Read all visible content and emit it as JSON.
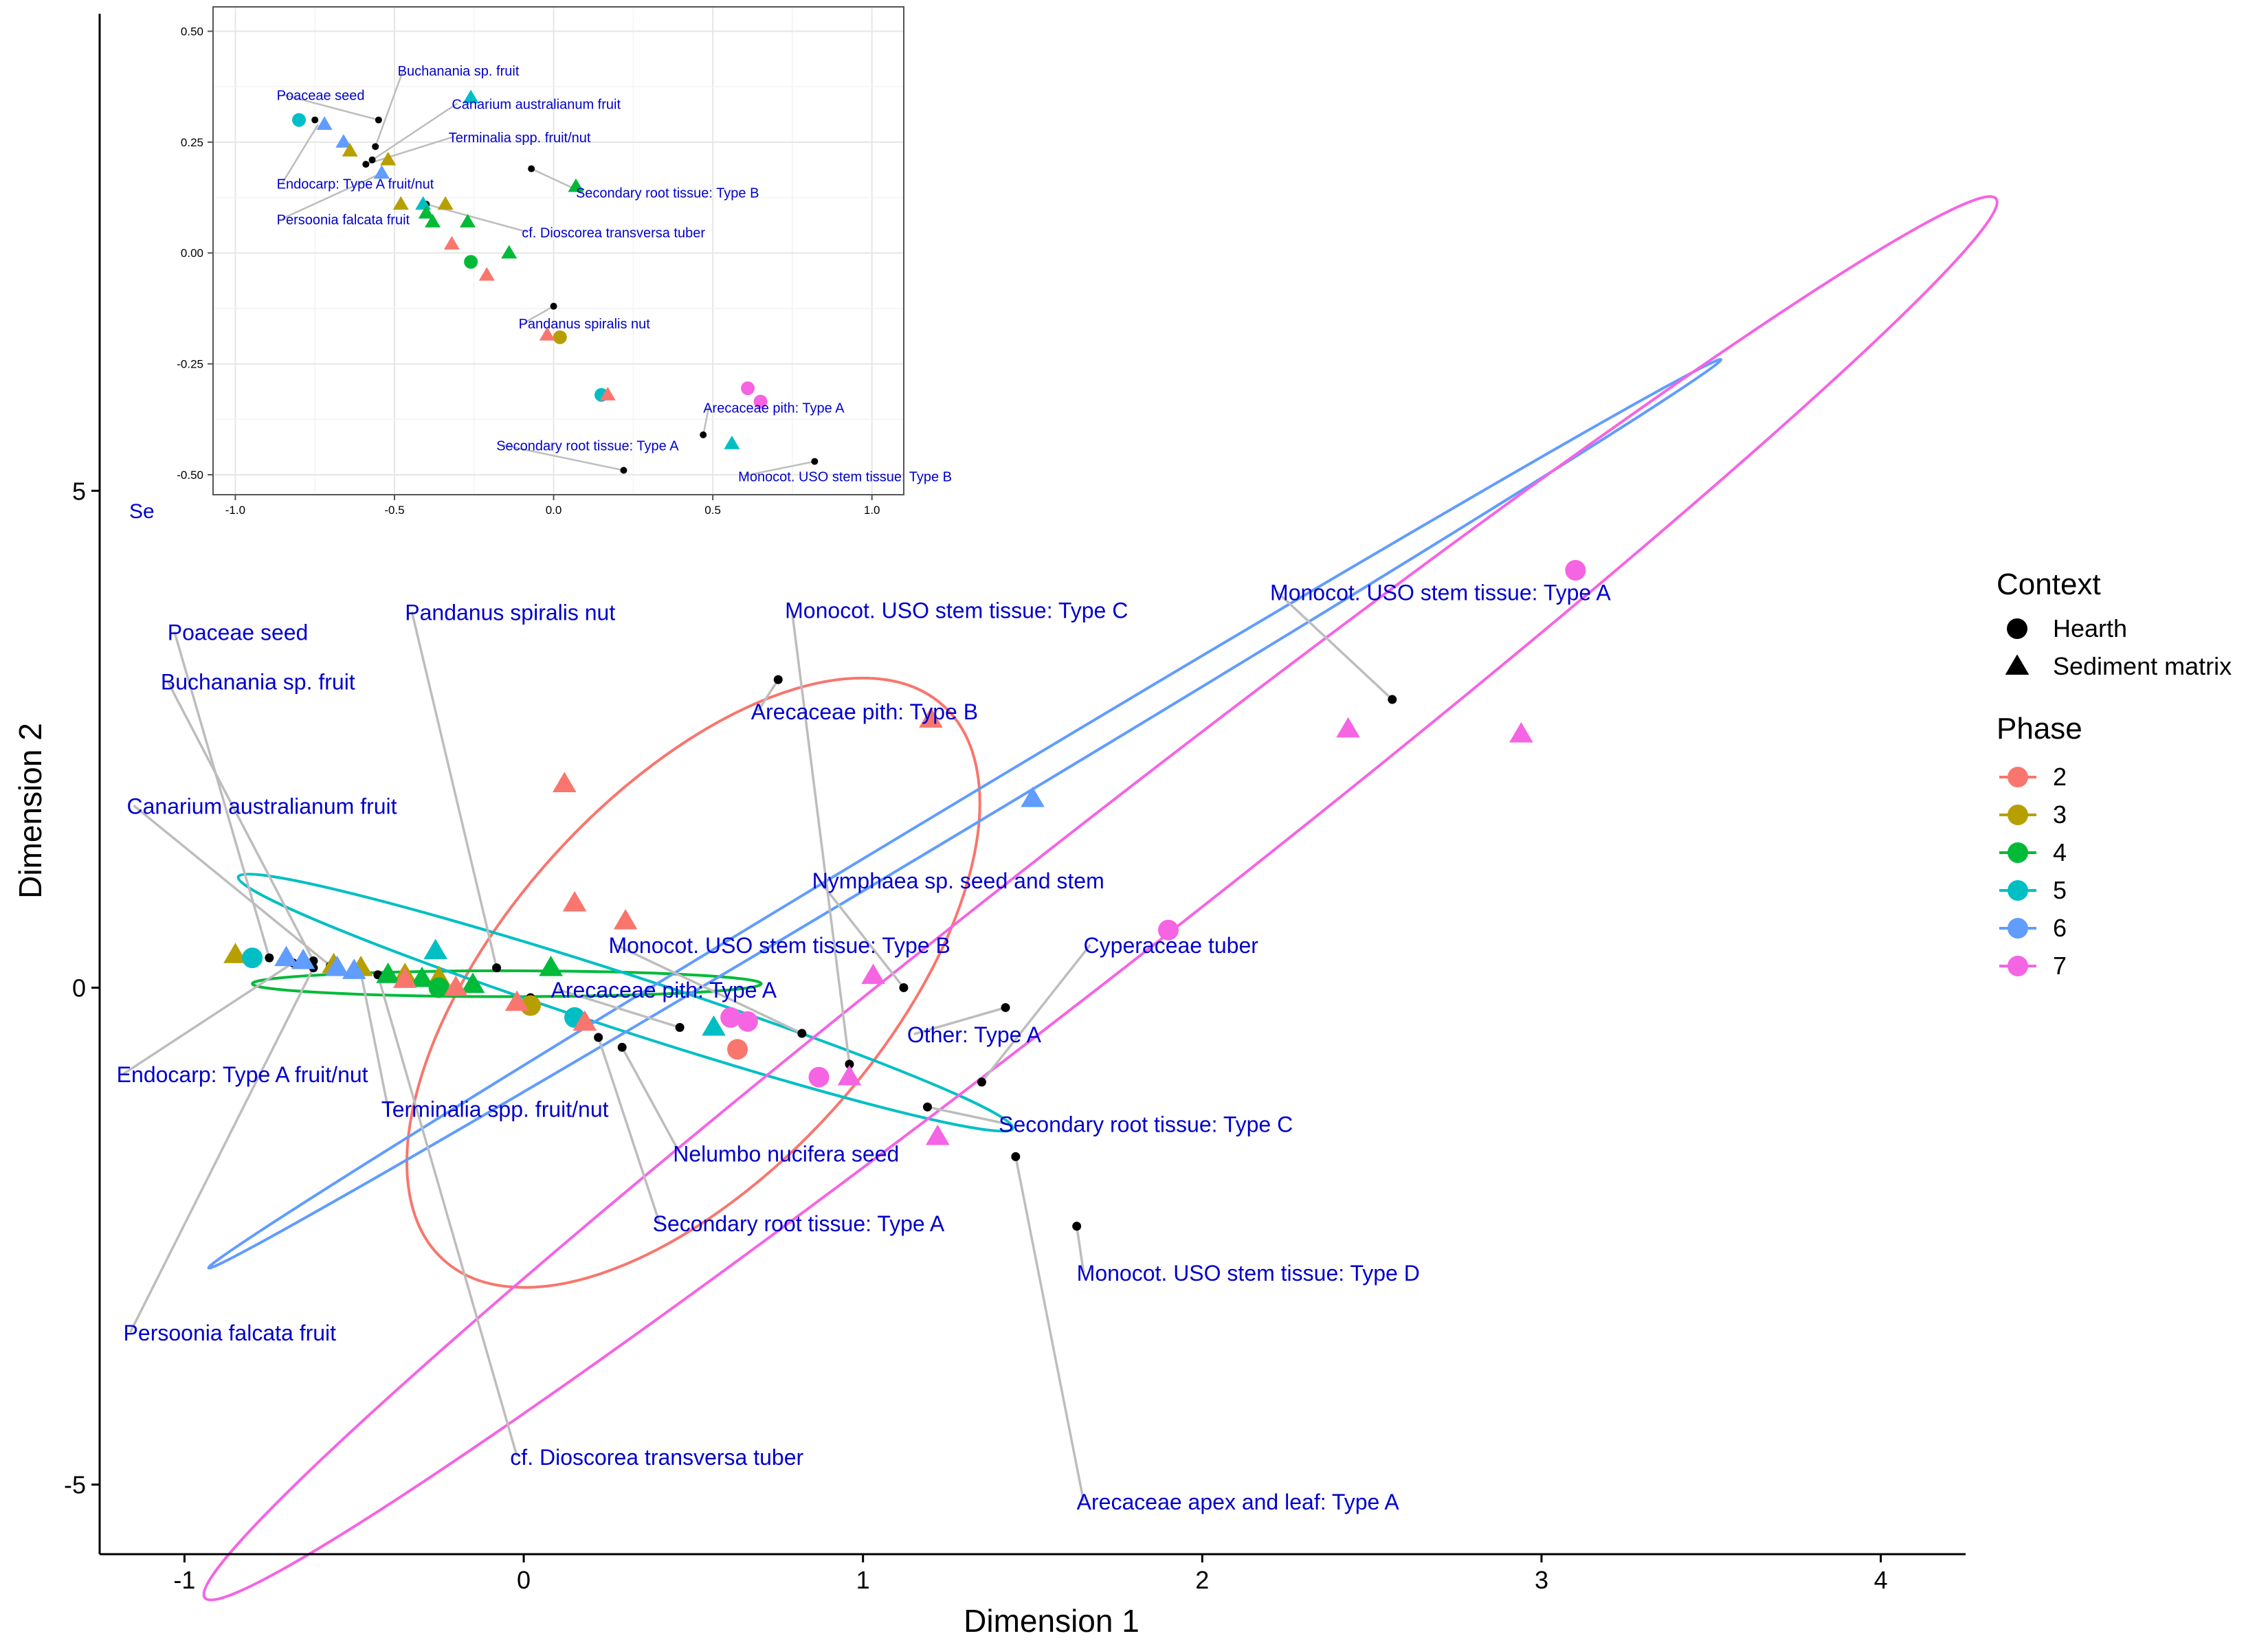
{
  "chart_data": [
    {
      "type": "scatter",
      "xlabel": "Dimension 1",
      "ylabel": "Dimension 2",
      "xlim": [
        -1.25,
        4.25
      ],
      "ylim": [
        -5.7,
        9.8
      ],
      "xticks": [
        -1,
        0,
        1,
        2,
        3,
        4
      ],
      "yticks": [
        -5,
        0,
        5
      ],
      "xtick_labels": [
        "-1",
        "0",
        "1",
        "2",
        "3",
        "4"
      ],
      "ytick_labels": [
        "-5",
        "0",
        "5"
      ],
      "grid": false,
      "legend": {
        "placement": "right",
        "context_title": "Context",
        "context_items": [
          {
            "label": "Hearth",
            "shape": "circle"
          },
          {
            "label": "Sediment matrix",
            "shape": "triangle"
          }
        ],
        "phase_title": "Phase",
        "phase_items": [
          {
            "label": "2",
            "color": "#F8766D"
          },
          {
            "label": "3",
            "color": "#B79F00"
          },
          {
            "label": "4",
            "color": "#00BA38"
          },
          {
            "label": "5",
            "color": "#00BFC4"
          },
          {
            "label": "6",
            "color": "#619CFF"
          },
          {
            "label": "7",
            "color": "#F564E3"
          }
        ]
      },
      "ellipses": [
        {
          "phase": "2",
          "cx": 0.5,
          "cy": 0.05,
          "rx": 1.1,
          "ry": 1.9,
          "angle": 48
        },
        {
          "phase": "4",
          "cx": -0.05,
          "cy": 0.04,
          "rx": 0.75,
          "ry": 0.13,
          "angle": 0
        },
        {
          "phase": "5",
          "cx": 0.3,
          "cy": -0.15,
          "rx": 1.2,
          "ry": 0.28,
          "angle": -18
        },
        {
          "phase": "6",
          "cx": 1.3,
          "cy": 1.75,
          "rx": 2.6,
          "ry": 0.14,
          "angle": 31
        },
        {
          "phase": "7",
          "cx": 1.7,
          "cy": 0.9,
          "rx": 3.35,
          "ry": 0.7,
          "angle": 38
        }
      ],
      "points": [
        {
          "x": -0.56,
          "y": 0.23,
          "shape": "triangle",
          "phase": "3"
        },
        {
          "x": -0.48,
          "y": 0.2,
          "shape": "triangle",
          "phase": "3"
        },
        {
          "x": -0.85,
          "y": 0.33,
          "shape": "triangle",
          "phase": "3"
        },
        {
          "x": -0.35,
          "y": 0.13,
          "shape": "triangle",
          "phase": "3"
        },
        {
          "x": -0.25,
          "y": 0.1,
          "shape": "triangle",
          "phase": "3"
        },
        {
          "x": 0.02,
          "y": -0.18,
          "shape": "circle",
          "phase": "3"
        },
        {
          "x": -0.8,
          "y": 0.3,
          "shape": "circle",
          "phase": "5"
        },
        {
          "x": -0.26,
          "y": 0.37,
          "shape": "triangle",
          "phase": "5"
        },
        {
          "x": 0.15,
          "y": -0.3,
          "shape": "circle",
          "phase": "5"
        },
        {
          "x": 0.56,
          "y": -0.4,
          "shape": "triangle",
          "phase": "5"
        },
        {
          "x": -0.3,
          "y": 0.09,
          "shape": "triangle",
          "phase": "4"
        },
        {
          "x": -0.15,
          "y": 0.03,
          "shape": "triangle",
          "phase": "4"
        },
        {
          "x": -0.4,
          "y": 0.13,
          "shape": "triangle",
          "phase": "4"
        },
        {
          "x": -0.25,
          "y": 0.0,
          "shape": "circle",
          "phase": "4"
        },
        {
          "x": 0.08,
          "y": 0.2,
          "shape": "triangle",
          "phase": "4"
        },
        {
          "x": -0.7,
          "y": 0.3,
          "shape": "triangle",
          "phase": "6"
        },
        {
          "x": -0.65,
          "y": 0.27,
          "shape": "triangle",
          "phase": "6"
        },
        {
          "x": -0.55,
          "y": 0.2,
          "shape": "triangle",
          "phase": "6"
        },
        {
          "x": -0.5,
          "y": 0.17,
          "shape": "triangle",
          "phase": "6"
        },
        {
          "x": 1.5,
          "y": 1.9,
          "shape": "triangle",
          "phase": "6"
        },
        {
          "x": -0.2,
          "y": 0.0,
          "shape": "triangle",
          "phase": "2"
        },
        {
          "x": -0.35,
          "y": 0.08,
          "shape": "triangle",
          "phase": "2"
        },
        {
          "x": 0.12,
          "y": 2.05,
          "shape": "triangle",
          "phase": "2"
        },
        {
          "x": 0.15,
          "y": 0.85,
          "shape": "triangle",
          "phase": "2"
        },
        {
          "x": 0.3,
          "y": 0.67,
          "shape": "triangle",
          "phase": "2"
        },
        {
          "x": -0.02,
          "y": -0.15,
          "shape": "triangle",
          "phase": "2"
        },
        {
          "x": 0.18,
          "y": -0.35,
          "shape": "triangle",
          "phase": "2"
        },
        {
          "x": 0.63,
          "y": -0.62,
          "shape": "circle",
          "phase": "2"
        },
        {
          "x": 1.2,
          "y": 2.7,
          "shape": "triangle",
          "phase": "2"
        },
        {
          "x": 0.61,
          "y": -0.3,
          "shape": "circle",
          "phase": "7"
        },
        {
          "x": 0.66,
          "y": -0.34,
          "shape": "circle",
          "phase": "7"
        },
        {
          "x": 0.87,
          "y": -0.9,
          "shape": "circle",
          "phase": "7"
        },
        {
          "x": 0.96,
          "y": -0.9,
          "shape": "triangle",
          "phase": "7"
        },
        {
          "x": 1.03,
          "y": 0.12,
          "shape": "triangle",
          "phase": "7"
        },
        {
          "x": 1.22,
          "y": -1.5,
          "shape": "triangle",
          "phase": "7"
        },
        {
          "x": 1.9,
          "y": 0.58,
          "shape": "circle",
          "phase": "7"
        },
        {
          "x": 2.43,
          "y": 2.6,
          "shape": "triangle",
          "phase": "7"
        },
        {
          "x": 2.94,
          "y": 2.55,
          "shape": "triangle",
          "phase": "7"
        },
        {
          "x": 3.1,
          "y": 4.2,
          "shape": "circle",
          "phase": "7"
        }
      ],
      "species": [
        {
          "label": "Poaceae seed",
          "x": -0.75,
          "y": 0.3,
          "lx": -1.05,
          "ly": 3.5
        },
        {
          "label": "Buchanania sp. fruit",
          "x": -0.62,
          "y": 0.27,
          "lx": -1.07,
          "ly": 3.0
        },
        {
          "label": "Canarium australianum fruit",
          "x": -0.57,
          "y": 0.22,
          "lx": -1.17,
          "ly": 1.75
        },
        {
          "label": "Endocarp: Type A fruit/nut",
          "x": -0.68,
          "y": 0.25,
          "lx": -1.2,
          "ly": -0.95
        },
        {
          "label": "Terminalia spp. fruit/nut",
          "x": -0.48,
          "y": 0.15,
          "lx": -0.42,
          "ly": -1.3
        },
        {
          "label": "Persoonia falcata fruit",
          "x": -0.62,
          "y": 0.2,
          "lx": -1.18,
          "ly": -3.55
        },
        {
          "label": "cf. Dioscorea transversa tuber",
          "x": -0.43,
          "y": 0.13,
          "lx": -0.04,
          "ly": -4.8
        },
        {
          "label": "Pandanus spiralis nut",
          "x": -0.08,
          "y": 0.2,
          "lx": -0.35,
          "ly": 3.7
        },
        {
          "label": "Monocot. USO stem tissue: Type C",
          "x": 0.96,
          "y": -0.77,
          "lx": 0.77,
          "ly": 3.72
        },
        {
          "label": "Arecaceae pith: Type B",
          "x": 0.75,
          "y": 3.1,
          "lx": 0.67,
          "ly": 2.7
        },
        {
          "label": "Monocot. USO stem tissue: Type A",
          "x": 2.56,
          "y": 2.9,
          "lx": 2.2,
          "ly": 3.9
        },
        {
          "label": "Nymphaea sp. seed and stem",
          "x": 1.12,
          "y": 0.0,
          "lx": 0.85,
          "ly": 1.0
        },
        {
          "label": "Monocot. USO stem tissue: Type B",
          "x": 0.82,
          "y": -0.46,
          "lx": 0.25,
          "ly": 0.35
        },
        {
          "label": "Cyperaceae tuber",
          "x": 1.35,
          "y": -0.95,
          "lx": 1.65,
          "ly": 0.35
        },
        {
          "label": "Arecaceae pith: Type A",
          "x": 0.46,
          "y": -0.4,
          "lx": 0.08,
          "ly": -0.1
        },
        {
          "label": "Other: Type A",
          "x": 1.42,
          "y": -0.2,
          "lx": 1.13,
          "ly": -0.55
        },
        {
          "label": "Secondary root tissue: Type C",
          "x": 1.19,
          "y": -1.2,
          "lx": 1.4,
          "ly": -1.45
        },
        {
          "label": "Nelumbo nucifera seed",
          "x": 0.29,
          "y": -0.6,
          "lx": 0.44,
          "ly": -1.75
        },
        {
          "label": "Secondary root tissue: Type A",
          "x": 0.22,
          "y": -0.5,
          "lx": 0.38,
          "ly": -2.45
        },
        {
          "label": "Monocot. USO stem tissue: Type D",
          "x": 1.63,
          "y": -2.4,
          "lx": 1.63,
          "ly": -2.95
        },
        {
          "label": "Arecaceae apex and leaf: Type A",
          "x": 1.45,
          "y": -1.7,
          "lx": 1.63,
          "ly": -5.25
        }
      ],
      "hearth_dots": [
        {
          "x": -0.75,
          "y": 0.3
        },
        {
          "x": -0.62,
          "y": 0.27
        },
        {
          "x": -0.57,
          "y": 0.22
        },
        {
          "x": -0.68,
          "y": 0.25
        },
        {
          "x": -0.48,
          "y": 0.15
        },
        {
          "x": -0.62,
          "y": 0.2
        },
        {
          "x": -0.43,
          "y": 0.13
        },
        {
          "x": -0.08,
          "y": 0.2
        },
        {
          "x": 0.96,
          "y": -0.77
        },
        {
          "x": 0.75,
          "y": 3.1
        },
        {
          "x": 2.56,
          "y": 2.9
        },
        {
          "x": 1.12,
          "y": 0.0
        },
        {
          "x": 0.82,
          "y": -0.46
        },
        {
          "x": 1.35,
          "y": -0.95
        },
        {
          "x": 0.46,
          "y": -0.4
        },
        {
          "x": 1.42,
          "y": -0.2
        },
        {
          "x": 1.19,
          "y": -1.2
        },
        {
          "x": 0.29,
          "y": -0.6
        },
        {
          "x": 0.22,
          "y": -0.5
        },
        {
          "x": 1.63,
          "y": -2.4
        },
        {
          "x": 1.45,
          "y": -1.7
        },
        {
          "x": 0.02,
          "y": -0.1
        }
      ],
      "clipped_label": "Se"
    },
    {
      "type": "scatter",
      "xlim": [
        -1.07,
        1.1
      ],
      "ylim": [
        -0.545,
        0.555
      ],
      "xticks": [
        -1.0,
        -0.5,
        0.0,
        0.5,
        1.0
      ],
      "yticks": [
        -0.5,
        -0.25,
        0.0,
        0.25,
        0.5
      ],
      "xtick_labels": [
        "-1.0",
        "-0.5",
        "0.0",
        "0.5",
        "1.0"
      ],
      "ytick_labels": [
        "-0.50",
        "-0.25",
        "0.00",
        "0.25",
        "0.50"
      ],
      "grid": true,
      "points": [
        {
          "x": -0.8,
          "y": 0.3,
          "shape": "circle",
          "phase": "5"
        },
        {
          "x": -0.72,
          "y": 0.29,
          "shape": "triangle",
          "phase": "6"
        },
        {
          "x": -0.66,
          "y": 0.25,
          "shape": "triangle",
          "phase": "6"
        },
        {
          "x": -0.64,
          "y": 0.23,
          "shape": "triangle",
          "phase": "3"
        },
        {
          "x": -0.52,
          "y": 0.21,
          "shape": "triangle",
          "phase": "3"
        },
        {
          "x": -0.54,
          "y": 0.18,
          "shape": "triangle",
          "phase": "6"
        },
        {
          "x": -0.26,
          "y": 0.35,
          "shape": "triangle",
          "phase": "5"
        },
        {
          "x": -0.48,
          "y": 0.11,
          "shape": "triangle",
          "phase": "3"
        },
        {
          "x": -0.34,
          "y": 0.11,
          "shape": "triangle",
          "phase": "3"
        },
        {
          "x": -0.41,
          "y": 0.11,
          "shape": "triangle",
          "phase": "5"
        },
        {
          "x": -0.4,
          "y": 0.09,
          "shape": "triangle",
          "phase": "4"
        },
        {
          "x": -0.38,
          "y": 0.07,
          "shape": "triangle",
          "phase": "4"
        },
        {
          "x": -0.27,
          "y": 0.07,
          "shape": "triangle",
          "phase": "4"
        },
        {
          "x": 0.07,
          "y": 0.15,
          "shape": "triangle",
          "phase": "4"
        },
        {
          "x": -0.14,
          "y": 0.0,
          "shape": "triangle",
          "phase": "4"
        },
        {
          "x": -0.32,
          "y": 0.02,
          "shape": "triangle",
          "phase": "2"
        },
        {
          "x": -0.26,
          "y": -0.02,
          "shape": "circle",
          "phase": "4"
        },
        {
          "x": -0.21,
          "y": -0.05,
          "shape": "triangle",
          "phase": "2"
        },
        {
          "x": 0.02,
          "y": -0.19,
          "shape": "circle",
          "phase": "3"
        },
        {
          "x": -0.02,
          "y": -0.185,
          "shape": "triangle",
          "phase": "2"
        },
        {
          "x": 0.15,
          "y": -0.32,
          "shape": "circle",
          "phase": "5"
        },
        {
          "x": 0.17,
          "y": -0.32,
          "shape": "triangle",
          "phase": "2"
        },
        {
          "x": 0.61,
          "y": -0.305,
          "shape": "circle",
          "phase": "7"
        },
        {
          "x": 0.65,
          "y": -0.335,
          "shape": "circle",
          "phase": "7"
        },
        {
          "x": 0.56,
          "y": -0.43,
          "shape": "triangle",
          "phase": "5"
        }
      ],
      "species": [
        {
          "label": "Poaceae seed",
          "x": -0.55,
          "y": 0.3,
          "lx": -0.87,
          "ly": 0.345
        },
        {
          "label": "Buchanania sp. fruit",
          "x": -0.56,
          "y": 0.24,
          "lx": -0.49,
          "ly": 0.4
        },
        {
          "label": "Canarium australianum fruit",
          "x": -0.59,
          "y": 0.2,
          "lx": -0.32,
          "ly": 0.325
        },
        {
          "label": "Terminalia spp. fruit/nut",
          "x": -0.59,
          "y": 0.2,
          "lx": -0.33,
          "ly": 0.25
        },
        {
          "label": "Endocarp: Type A fruit/nut",
          "x": -0.74,
          "y": 0.29,
          "lx": -0.87,
          "ly": 0.145
        },
        {
          "label": "Persoonia falcata fruit",
          "x": -0.54,
          "y": 0.18,
          "lx": -0.87,
          "ly": 0.065
        },
        {
          "label": "Secondary root tissue: Type B",
          "x": -0.07,
          "y": 0.19,
          "lx": 0.07,
          "ly": 0.125
        },
        {
          "label": "cf. Dioscorea transversa tuber",
          "x": -0.4,
          "y": 0.11,
          "lx": -0.1,
          "ly": 0.035
        },
        {
          "label": "Pandanus spiralis nut",
          "x": 0.0,
          "y": -0.12,
          "lx": -0.11,
          "ly": -0.17
        },
        {
          "label": "Arecaceae pith: Type A",
          "x": 0.47,
          "y": -0.41,
          "lx": 0.47,
          "ly": -0.36
        },
        {
          "label": "Secondary root tissue: Type A",
          "x": 0.22,
          "y": -0.49,
          "lx": -0.18,
          "ly": -0.445
        },
        {
          "label": "Monocot. USO stem tissue: Type B",
          "x": 0.82,
          "y": -0.47,
          "lx": 0.58,
          "ly": -0.515
        }
      ],
      "hearth_dots": [
        {
          "x": -0.75,
          "y": 0.3
        },
        {
          "x": -0.55,
          "y": 0.3
        },
        {
          "x": -0.56,
          "y": 0.24
        },
        {
          "x": -0.59,
          "y": 0.2
        },
        {
          "x": -0.57,
          "y": 0.21
        },
        {
          "x": -0.07,
          "y": 0.19
        },
        {
          "x": -0.4,
          "y": 0.11
        },
        {
          "x": 0.0,
          "y": -0.12
        },
        {
          "x": 0.47,
          "y": -0.41
        },
        {
          "x": 0.22,
          "y": -0.49
        },
        {
          "x": 0.82,
          "y": -0.47
        }
      ]
    }
  ]
}
